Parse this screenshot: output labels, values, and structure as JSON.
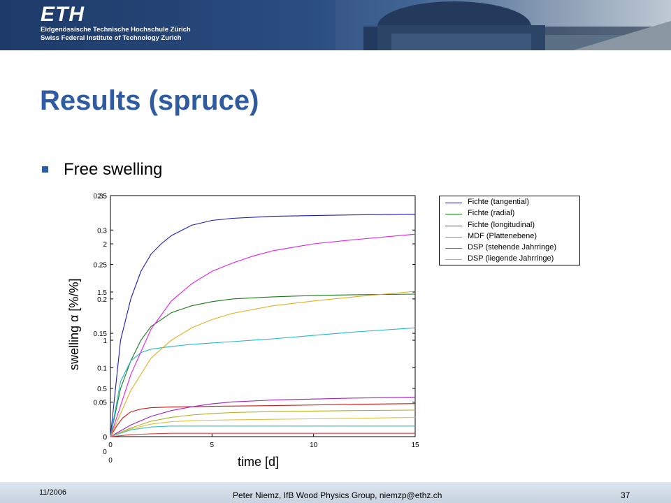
{
  "header": {
    "logo_text": "ETH",
    "institution_line1": "Eidgenössische Technische Hochschule Zürich",
    "institution_line2": "Swiss Federal Institute of Technology Zurich"
  },
  "slide": {
    "title": "Results (spruce)",
    "bullet": "Free swelling"
  },
  "footer": {
    "date": "11/2006",
    "text": "Peter Niemz, IfB Wood Physics Group, niemzp@ethz.ch",
    "page": "37"
  },
  "colors": {
    "title": "#2f5ba1",
    "banner": "#1d3a68",
    "series": [
      "#1a1ab4",
      "#1a7a1a",
      "#cc1a1a",
      "#22b8c8",
      "#e020e0",
      "#e0b020"
    ]
  },
  "chart_data": {
    "type": "line",
    "xlabel": "time [d]",
    "ylabel": "swelling α [%/%]",
    "x_ticks": [
      "0",
      "5",
      "10",
      "15"
    ],
    "xlim": [
      0,
      15
    ],
    "overlapping_axes": [
      {
        "side": "left-outer",
        "ylim": [
          0,
          2.5
        ],
        "tick_labels": [
          "0",
          "0.5",
          "1",
          "1.5",
          "2",
          "2.5"
        ],
        "tick_values": [
          0,
          0.5,
          1,
          1.5,
          2,
          2.5
        ]
      },
      {
        "side": "left-inner",
        "ylim": [
          0,
          0.35
        ],
        "tick_labels": [
          "0",
          "0.05",
          "0.1",
          "0.15",
          "0.2",
          "0.25",
          "0.3",
          "0.35"
        ],
        "tick_values": [
          0,
          0.05,
          0.1,
          0.15,
          0.2,
          0.25,
          0.3,
          0.35
        ]
      }
    ],
    "extra_labels": [
      {
        "text": "0"
      },
      {
        "text": "0"
      }
    ],
    "legend_position": "top-right outside",
    "legend": [
      "Fichte (tangential)",
      "Fichte (radial)",
      "Fichte (longitudinal)",
      "MDF (Plattenebene)",
      "DSP (stehende Jahrringe)",
      "DSP (liegende Jahrringe)"
    ],
    "series": [
      {
        "name": "Fichte (tangential)",
        "axis": 1,
        "x": [
          0,
          0.5,
          1,
          1.5,
          2,
          2.5,
          3,
          4,
          5,
          6,
          8,
          10,
          12,
          15
        ],
        "y": [
          0,
          0.14,
          0.2,
          0.24,
          0.265,
          0.28,
          0.292,
          0.307,
          0.314,
          0.317,
          0.32,
          0.321,
          0.322,
          0.323
        ]
      },
      {
        "name": "Fichte (radial)",
        "axis": 1,
        "x": [
          0,
          0.5,
          1,
          1.5,
          2,
          3,
          4,
          5,
          6,
          8,
          10,
          12,
          15
        ],
        "y": [
          0,
          0.07,
          0.11,
          0.14,
          0.16,
          0.18,
          0.19,
          0.196,
          0.2,
          0.203,
          0.205,
          0.206,
          0.207
        ]
      },
      {
        "name": "Fichte (longitudinal)",
        "axis": 1,
        "x": [
          0,
          0.3,
          0.6,
          1,
          1.5,
          2,
          3,
          5,
          8,
          10,
          12,
          15
        ],
        "y": [
          0,
          0.015,
          0.027,
          0.036,
          0.04,
          0.042,
          0.043,
          0.044,
          0.045,
          0.046,
          0.047,
          0.048
        ]
      },
      {
        "name": "MDF (Plattenebene)",
        "axis": 1,
        "x": [
          0,
          0.5,
          1,
          1.5,
          2,
          3,
          4,
          5,
          6,
          8,
          10,
          12,
          15
        ],
        "y": [
          0,
          0.08,
          0.11,
          0.122,
          0.127,
          0.131,
          0.134,
          0.136,
          0.138,
          0.142,
          0.147,
          0.152,
          0.158
        ]
      },
      {
        "name": "DSP (stehende Jahrringe)",
        "axis": 1,
        "x": [
          0,
          1,
          2,
          3,
          4,
          5,
          6,
          7,
          8,
          9,
          10,
          12,
          15
        ],
        "y": [
          0,
          0.09,
          0.156,
          0.197,
          0.222,
          0.24,
          0.252,
          0.262,
          0.27,
          0.275,
          0.28,
          0.286,
          0.294
        ]
      },
      {
        "name": "DSP (liegende Jahrringe)",
        "axis": 1,
        "x": [
          0,
          1,
          2,
          3,
          4,
          5,
          6,
          8,
          10,
          12,
          15
        ],
        "y": [
          0,
          0.067,
          0.114,
          0.14,
          0.158,
          0.17,
          0.179,
          0.19,
          0.197,
          0.203,
          0.211
        ]
      },
      {
        "name": "",
        "axis": 0,
        "x": [
          0,
          1,
          2,
          3,
          4,
          5,
          6,
          8,
          10,
          12,
          15
        ],
        "y": [
          0,
          0.12,
          0.21,
          0.27,
          0.31,
          0.34,
          0.36,
          0.38,
          0.39,
          0.4,
          0.41
        ]
      },
      {
        "name": "",
        "axis": 0,
        "x": [
          0,
          1,
          2,
          3,
          4,
          5,
          6,
          8,
          10,
          12,
          15
        ],
        "y": [
          0,
          0.09,
          0.16,
          0.2,
          0.225,
          0.24,
          0.25,
          0.26,
          0.265,
          0.27,
          0.275
        ]
      },
      {
        "name": "",
        "axis": 0,
        "x": [
          0,
          1,
          2,
          3,
          4,
          5,
          6,
          8,
          10,
          12,
          15
        ],
        "y": [
          0,
          0.08,
          0.13,
          0.155,
          0.165,
          0.17,
          0.175,
          0.18,
          0.185,
          0.19,
          0.2
        ]
      },
      {
        "name": "",
        "axis": 0,
        "x": [
          0,
          1,
          2,
          3,
          4,
          6,
          8,
          10,
          12,
          15
        ],
        "y": [
          0,
          0.07,
          0.1,
          0.11,
          0.11,
          0.11,
          0.11,
          0.11,
          0.11,
          0.11
        ]
      },
      {
        "name": "",
        "axis": 0,
        "x": [
          0,
          1,
          2,
          3,
          5,
          8,
          10,
          15
        ],
        "y": [
          0,
          0.02,
          0.03,
          0.035,
          0.035,
          0.035,
          0.035,
          0.035
        ]
      }
    ],
    "extra_series_colors": [
      "#a020c0",
      "#b0b020",
      "#e0c040",
      "#30c0c0",
      "#e04040"
    ]
  }
}
